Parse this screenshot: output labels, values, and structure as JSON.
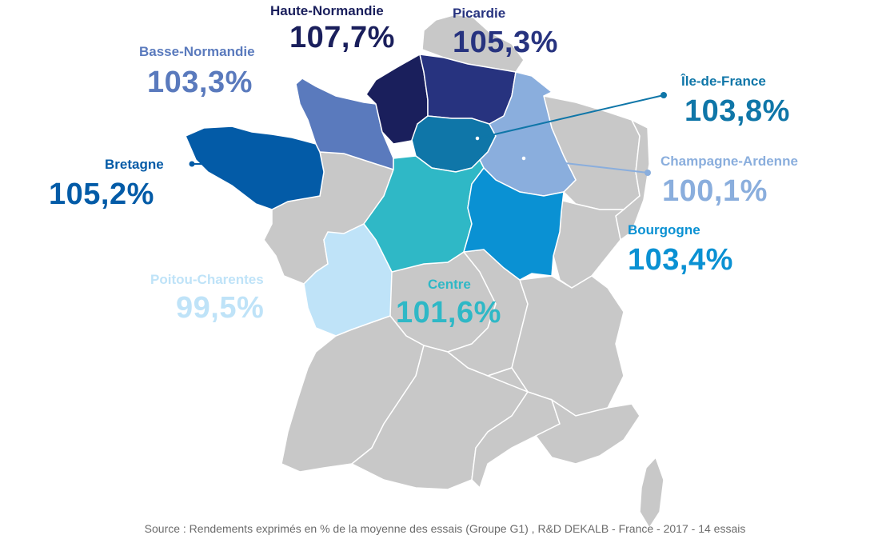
{
  "colors": {
    "other": "#c8c8c8",
    "border": "#ffffff",
    "haute_normandie": "#1a1f5c",
    "picardie": "#27337f",
    "basse_normandie": "#5a7abd",
    "bretagne": "#035ba7",
    "ile_de_france": "#0f76a8",
    "champagne_ardenne": "#8aaedd",
    "bourgogne": "#0a91d3",
    "centre": "#2fb8c6",
    "poitou_charentes": "#bfe3f8",
    "source_text": "#6b6b6b"
  },
  "regions": [
    {
      "key": "haute_normandie",
      "name": "Haute-Normandie",
      "value": "107,7%"
    },
    {
      "key": "picardie",
      "name": "Picardie",
      "value": "105,3%"
    },
    {
      "key": "basse_normandie",
      "name": "Basse-Normandie",
      "value": "103,3%"
    },
    {
      "key": "ile_de_france",
      "name": "Île-de-France",
      "value": "103,8%"
    },
    {
      "key": "bretagne",
      "name": "Bretagne",
      "value": "105,2%"
    },
    {
      "key": "champagne_ardenne",
      "name": "Champagne-Ardenne",
      "value": "100,1%"
    },
    {
      "key": "bourgogne",
      "name": "Bourgogne",
      "value": "103,4%"
    },
    {
      "key": "poitou_charentes",
      "name": "Poitou-Charentes",
      "value": "99,5%"
    },
    {
      "key": "centre",
      "name": "Centre",
      "value": "101,6%"
    }
  ],
  "source": "Source : Rendements exprimés en % de la moyenne des essais (Groupe G1) , R&D DEKALB - France - 2017 - 14 essais"
}
